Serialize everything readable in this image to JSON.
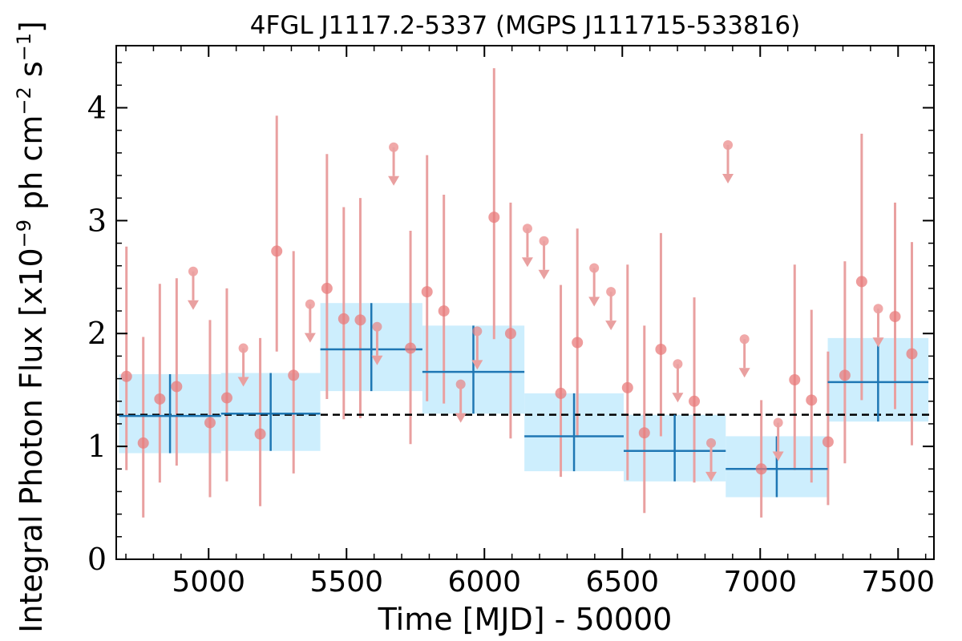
{
  "chart_data": {
    "type": "scatter",
    "title": "4FGL J1117.2-5337 (MGPS J111715-533816)",
    "xlabel": "Time [MJD] - 50000",
    "ylabel": "Integral Photon Flux [x10",
    "ylabel_exp": "−9",
    "ylabel_mid": " ph cm",
    "ylabel_exp2": "−2",
    "ylabel_mid2": " s",
    "ylabel_exp3": "−1",
    "ylabel_end": "]",
    "xlim": [
      4665,
      7630
    ],
    "ylim": [
      0,
      4.55
    ],
    "x_ticks": [
      5000,
      5500,
      6000,
      6500,
      7000,
      7500
    ],
    "x_tick_labels": [
      "5000",
      "5500",
      "6000",
      "6500",
      "7000",
      "7500"
    ],
    "y_ticks": [
      0,
      1,
      2,
      3,
      4
    ],
    "y_tick_labels": [
      "0",
      "1",
      "2",
      "3",
      "4"
    ],
    "mean_flux": 1.28,
    "colors": {
      "points": "#e87b7b",
      "errorbars": "#e9a0a0",
      "bins": "#1f77b4",
      "bands": "#cdeefd",
      "mean_line": "#000000"
    },
    "series": [
      {
        "values": [
          {
            "x": 4702,
            "y": 1.62,
            "lo": 0.79,
            "hi": 2.77
          },
          {
            "x": 4763,
            "y": 1.03,
            "lo": 0.37,
            "hi": 1.97
          },
          {
            "x": 4823,
            "y": 1.42,
            "lo": 0.68,
            "hi": 2.44
          },
          {
            "x": 4884,
            "y": 1.53,
            "lo": 0.83,
            "hi": 2.49
          },
          {
            "x": 5005,
            "y": 1.21,
            "lo": 0.55,
            "hi": 2.12
          },
          {
            "x": 5066,
            "y": 1.43,
            "lo": 0.69,
            "hi": 2.4
          },
          {
            "x": 5187,
            "y": 1.11,
            "lo": 0.47,
            "hi": 1.96
          },
          {
            "x": 5247,
            "y": 2.73,
            "lo": 1.84,
            "hi": 3.93
          },
          {
            "x": 5308,
            "y": 1.63,
            "lo": 0.76,
            "hi": 2.73
          },
          {
            "x": 5429,
            "y": 2.4,
            "lo": 1.42,
            "hi": 3.59
          },
          {
            "x": 5490,
            "y": 2.13,
            "lo": 1.24,
            "hi": 3.12
          },
          {
            "x": 5550,
            "y": 2.12,
            "lo": 1.25,
            "hi": 3.2
          },
          {
            "x": 5732,
            "y": 1.87,
            "lo": 1.02,
            "hi": 2.91
          },
          {
            "x": 5792,
            "y": 2.37,
            "lo": 1.4,
            "hi": 3.58
          },
          {
            "x": 5853,
            "y": 2.2,
            "lo": 1.38,
            "hi": 3.23
          },
          {
            "x": 6035,
            "y": 3.03,
            "lo": 1.95,
            "hi": 4.35
          },
          {
            "x": 6095,
            "y": 2.0,
            "lo": 1.07,
            "hi": 3.16
          },
          {
            "x": 6277,
            "y": 1.47,
            "lo": 0.73,
            "hi": 2.43
          },
          {
            "x": 6337,
            "y": 1.92,
            "lo": 1.08,
            "hi": 2.93
          },
          {
            "x": 6519,
            "y": 1.52,
            "lo": 0.7,
            "hi": 2.61
          },
          {
            "x": 6580,
            "y": 1.12,
            "lo": 0.41,
            "hi": 2.07
          },
          {
            "x": 6640,
            "y": 1.86,
            "lo": 1.09,
            "hi": 2.89
          },
          {
            "x": 6761,
            "y": 1.4,
            "lo": 0.68,
            "hi": 2.32
          },
          {
            "x": 7004,
            "y": 0.8,
            "lo": 0.37,
            "hi": 1.41
          },
          {
            "x": 7125,
            "y": 1.59,
            "lo": 0.79,
            "hi": 2.61
          },
          {
            "x": 7186,
            "y": 1.41,
            "lo": 0.68,
            "hi": 2.21
          },
          {
            "x": 7246,
            "y": 1.04,
            "lo": 0.48,
            "hi": 1.84
          },
          {
            "x": 7307,
            "y": 1.63,
            "lo": 0.85,
            "hi": 2.64
          },
          {
            "x": 7368,
            "y": 2.46,
            "lo": 1.41,
            "hi": 3.77
          },
          {
            "x": 7489,
            "y": 2.15,
            "lo": 1.33,
            "hi": 3.16
          },
          {
            "x": 7550,
            "y": 1.82,
            "lo": 1.01,
            "hi": 2.81
          }
        ]
      },
      {
        "type": "upper_limit",
        "values": [
          {
            "x": 4944,
            "y": 2.55
          },
          {
            "x": 5126,
            "y": 1.87
          },
          {
            "x": 5368,
            "y": 2.26
          },
          {
            "x": 5611,
            "y": 2.06
          },
          {
            "x": 5671,
            "y": 3.65
          },
          {
            "x": 5914,
            "y": 1.55
          },
          {
            "x": 5974,
            "y": 2.02
          },
          {
            "x": 6156,
            "y": 2.93
          },
          {
            "x": 6216,
            "y": 2.82
          },
          {
            "x": 6398,
            "y": 2.58
          },
          {
            "x": 6459,
            "y": 2.37
          },
          {
            "x": 6701,
            "y": 1.73
          },
          {
            "x": 6822,
            "y": 1.03
          },
          {
            "x": 6883,
            "y": 3.67
          },
          {
            "x": 6943,
            "y": 1.95
          },
          {
            "x": 7065,
            "y": 1.21
          },
          {
            "x": 7428,
            "y": 2.22
          }
        ]
      },
      {
        "type": "binned",
        "values": [
          {
            "x0": 4675,
            "x1": 5045,
            "y": 1.27,
            "lo": 0.94,
            "hi": 1.64
          },
          {
            "x0": 5045,
            "x1": 5405,
            "y": 1.29,
            "lo": 0.96,
            "hi": 1.65
          },
          {
            "x0": 5405,
            "x1": 5775,
            "y": 1.86,
            "lo": 1.49,
            "hi": 2.27
          },
          {
            "x0": 5775,
            "x1": 6145,
            "y": 1.66,
            "lo": 1.29,
            "hi": 2.07
          },
          {
            "x0": 6145,
            "x1": 6505,
            "y": 1.09,
            "lo": 0.78,
            "hi": 1.47
          },
          {
            "x0": 6505,
            "x1": 6875,
            "y": 0.96,
            "lo": 0.69,
            "hi": 1.28
          },
          {
            "x0": 6875,
            "x1": 7245,
            "y": 0.8,
            "lo": 0.55,
            "hi": 1.09
          },
          {
            "x0": 7245,
            "x1": 7610,
            "y": 1.57,
            "lo": 1.22,
            "hi": 1.96
          }
        ]
      }
    ]
  }
}
